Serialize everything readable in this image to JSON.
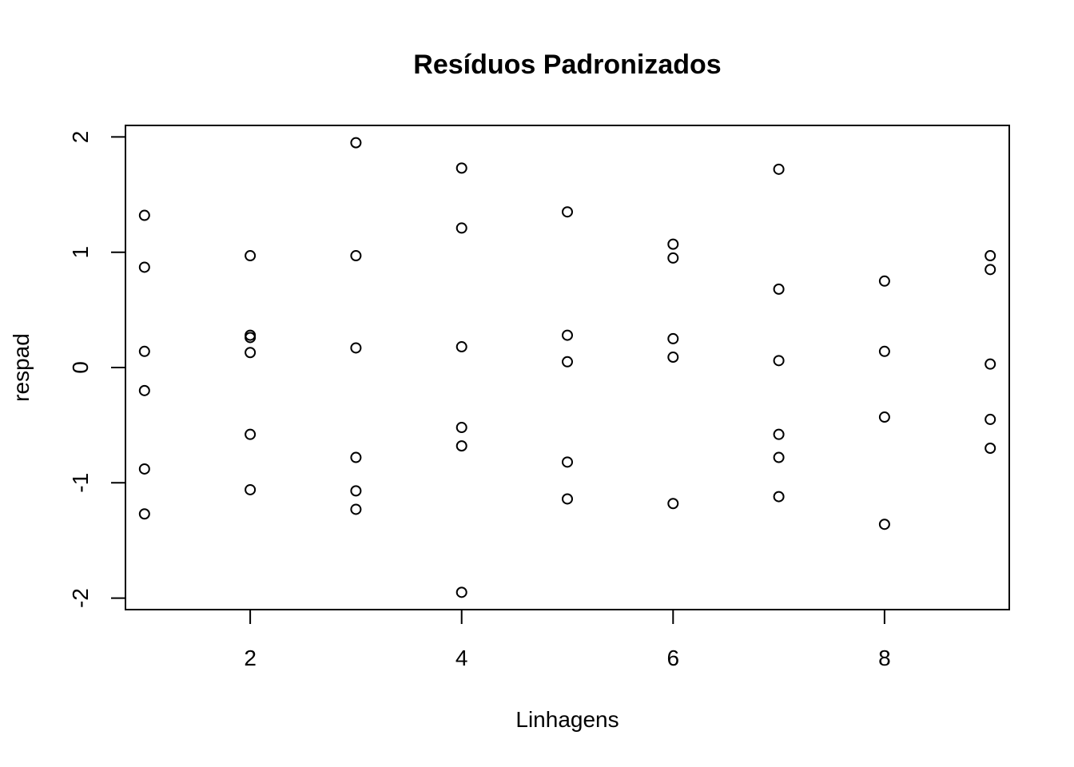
{
  "chart_data": {
    "type": "scatter",
    "title": "Resíduos Padronizados",
    "xlabel": "Linhagens",
    "ylabel": "respad",
    "xlim": [
      0.82,
      9.18
    ],
    "ylim": [
      -2.1,
      2.1
    ],
    "xticks": [
      2,
      4,
      6,
      8
    ],
    "yticks": [
      -2,
      -1,
      0,
      1,
      2
    ],
    "grid": false,
    "points": [
      {
        "x": 1,
        "y": 1.32
      },
      {
        "x": 1,
        "y": 0.87
      },
      {
        "x": 1,
        "y": 0.14
      },
      {
        "x": 1,
        "y": -0.2
      },
      {
        "x": 1,
        "y": -0.88
      },
      {
        "x": 1,
        "y": -1.27
      },
      {
        "x": 2,
        "y": 0.97
      },
      {
        "x": 2,
        "y": 0.28
      },
      {
        "x": 2,
        "y": 0.26
      },
      {
        "x": 2,
        "y": 0.13
      },
      {
        "x": 2,
        "y": -0.58
      },
      {
        "x": 2,
        "y": -1.06
      },
      {
        "x": 3,
        "y": 1.95
      },
      {
        "x": 3,
        "y": 0.97
      },
      {
        "x": 3,
        "y": 0.17
      },
      {
        "x": 3,
        "y": -0.78
      },
      {
        "x": 3,
        "y": -1.07
      },
      {
        "x": 3,
        "y": -1.23
      },
      {
        "x": 4,
        "y": 1.73
      },
      {
        "x": 4,
        "y": 1.21
      },
      {
        "x": 4,
        "y": 0.18
      },
      {
        "x": 4,
        "y": -0.52
      },
      {
        "x": 4,
        "y": -0.68
      },
      {
        "x": 4,
        "y": -1.95
      },
      {
        "x": 5,
        "y": 1.35
      },
      {
        "x": 5,
        "y": 0.28
      },
      {
        "x": 5,
        "y": 0.05
      },
      {
        "x": 5,
        "y": -0.82
      },
      {
        "x": 5,
        "y": -1.14
      },
      {
        "x": 6,
        "y": 1.07
      },
      {
        "x": 6,
        "y": 0.95
      },
      {
        "x": 6,
        "y": 0.25
      },
      {
        "x": 6,
        "y": 0.09
      },
      {
        "x": 6,
        "y": -1.18
      },
      {
        "x": 7,
        "y": 1.72
      },
      {
        "x": 7,
        "y": 0.68
      },
      {
        "x": 7,
        "y": 0.06
      },
      {
        "x": 7,
        "y": -0.58
      },
      {
        "x": 7,
        "y": -0.78
      },
      {
        "x": 7,
        "y": -1.12
      },
      {
        "x": 8,
        "y": 0.75
      },
      {
        "x": 8,
        "y": 0.14
      },
      {
        "x": 8,
        "y": -0.43
      },
      {
        "x": 8,
        "y": -1.36
      },
      {
        "x": 9,
        "y": 0.97
      },
      {
        "x": 9,
        "y": 0.85
      },
      {
        "x": 9,
        "y": 0.03
      },
      {
        "x": 9,
        "y": -0.45
      },
      {
        "x": 9,
        "y": -0.7
      }
    ]
  }
}
